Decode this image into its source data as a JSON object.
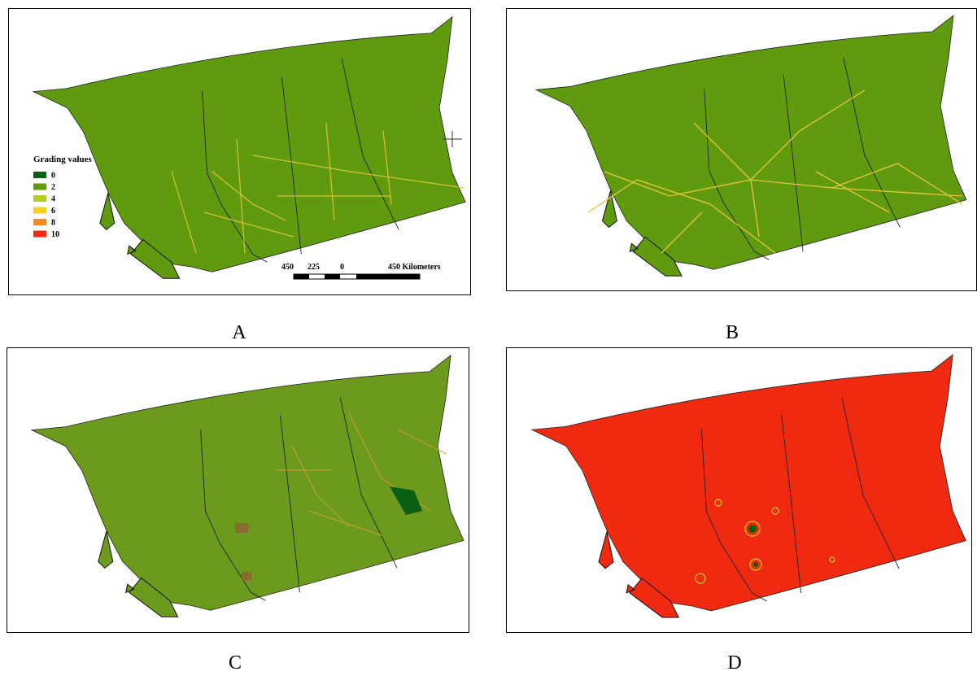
{
  "panels": [
    {
      "label": "A"
    },
    {
      "label": "B"
    },
    {
      "label": "C"
    },
    {
      "label": "D"
    }
  ],
  "legend": {
    "title": "Grading values",
    "items": [
      {
        "label": "0",
        "color": "#0b5f14"
      },
      {
        "label": "2",
        "color": "#5f9a0f"
      },
      {
        "label": "4",
        "color": "#b5cc22"
      },
      {
        "label": "6",
        "color": "#f4d21c"
      },
      {
        "label": "8",
        "color": "#f58a1e"
      },
      {
        "label": "10",
        "color": "#f02a10"
      }
    ]
  },
  "scale_bar": {
    "labels": [
      "450",
      "225",
      "0",
      "450 Kilometers"
    ]
  }
}
